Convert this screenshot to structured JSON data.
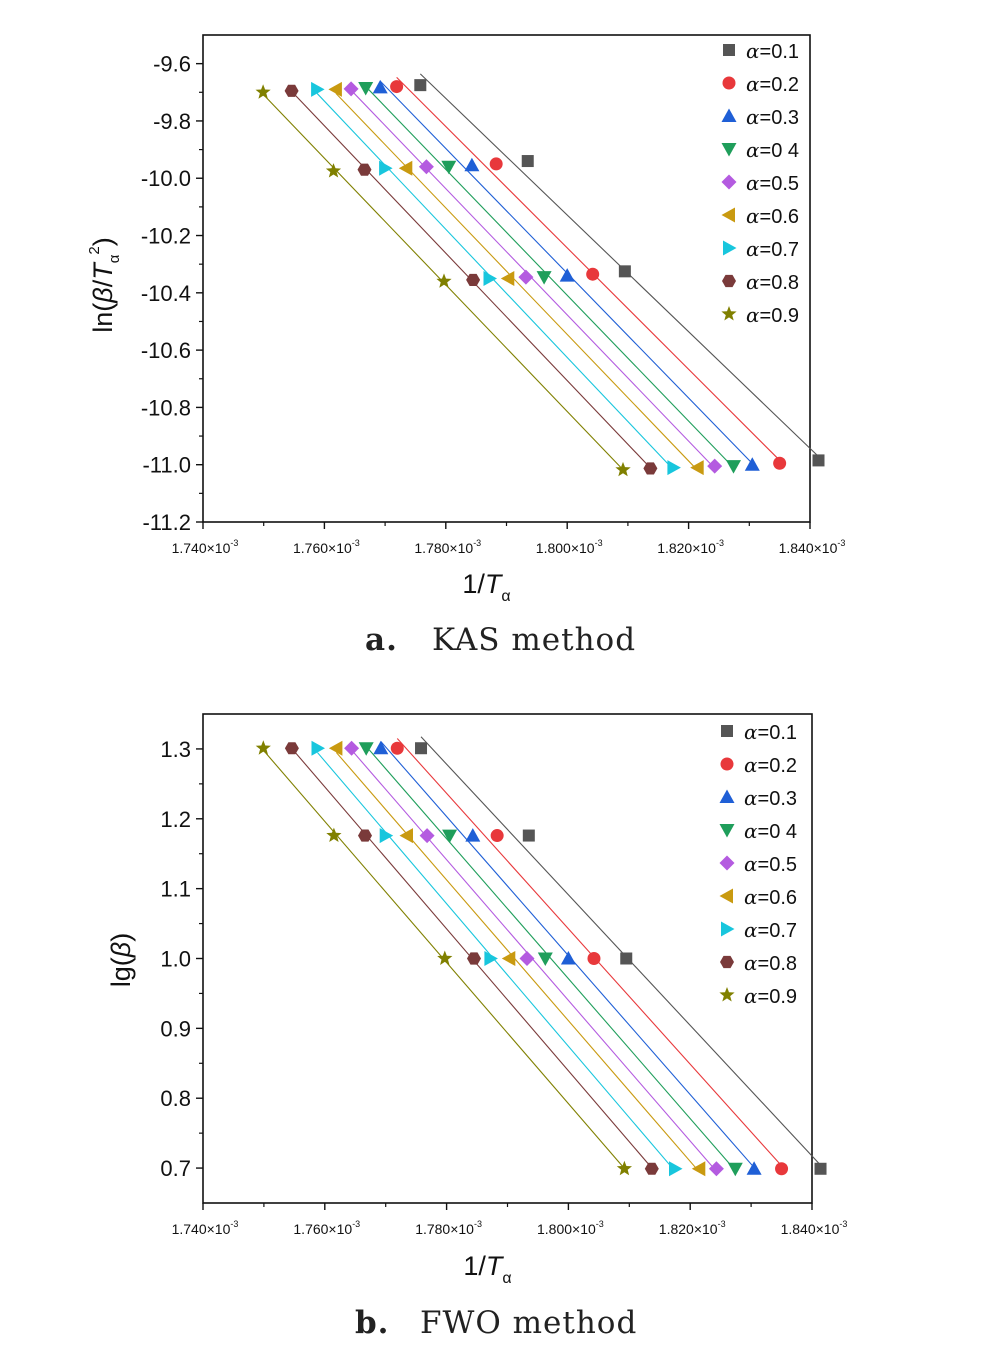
{
  "colors": [
    "#555555",
    "#e8383b",
    "#1f5fd6",
    "#1f9e5b",
    "#b45be0",
    "#c99a10",
    "#18c6dd",
    "#7a3a3a",
    "#808000"
  ],
  "markers": [
    "square",
    "circle",
    "triangle-up",
    "triangle-down",
    "diamond",
    "triangle-left",
    "triangle-right",
    "hexagon",
    "star"
  ],
  "chart_data": [
    {
      "type": "scatter",
      "caption_letter": "a.",
      "caption_text": "KAS method",
      "ylabel_parts": [
        "ln(",
        "β",
        "/",
        "T",
        "α",
        "2",
        ")"
      ],
      "xlabel_parts": [
        "1/",
        "T",
        "α"
      ],
      "xlim": [
        1.74,
        1.84
      ],
      "ylim": [
        -11.2,
        -9.5
      ],
      "x_ticks": [
        "1.740×10",
        "1.760×10",
        "1.780×10",
        "1.800×10",
        "1.820×10",
        "1.840×10"
      ],
      "x_tick_exp": "-3",
      "x_tick_values": [
        1.74,
        1.76,
        1.78,
        1.8,
        1.82,
        1.84
      ],
      "y_ticks": [
        "-9.6",
        "-9.8",
        "-10.0",
        "-10.2",
        "-10.4",
        "-10.6",
        "-10.8",
        "-11.0",
        "-11.2"
      ],
      "y_tick_values": [
        -9.6,
        -9.8,
        -10.0,
        -10.2,
        -10.4,
        -10.6,
        -10.8,
        -11.0,
        -11.2
      ],
      "legend_position": "top-right",
      "series": [
        {
          "name": "α=0.1",
          "x": [
            1.7758,
            1.7935,
            1.8095,
            1.8414
          ],
          "y": [
            -9.675,
            -9.94,
            -10.325,
            -10.985
          ]
        },
        {
          "name": "α=0.2",
          "x": [
            1.7719,
            1.7883,
            1.8042,
            1.835
          ],
          "y": [
            -9.68,
            -9.95,
            -10.335,
            -10.995
          ]
        },
        {
          "name": "α=0.3",
          "x": [
            1.7692,
            1.7843,
            1.8,
            1.8305
          ],
          "y": [
            -9.683,
            -9.955,
            -10.34,
            -11.0
          ]
        },
        {
          "name": "α=0 4",
          "x": [
            1.7668,
            1.7805,
            1.7962,
            1.8274
          ],
          "y": [
            -9.685,
            -9.96,
            -10.345,
            -11.005
          ]
        },
        {
          "name": "α=0.5",
          "x": [
            1.7644,
            1.7768,
            1.7932,
            1.8243
          ],
          "y": [
            -9.688,
            -9.96,
            -10.345,
            -11.005
          ]
        },
        {
          "name": "α=0.6",
          "x": [
            1.7619,
            1.7735,
            1.7903,
            1.8215
          ],
          "y": [
            -9.69,
            -9.965,
            -10.35,
            -11.01
          ]
        },
        {
          "name": "α=0.7",
          "x": [
            1.7588,
            1.77,
            1.7872,
            1.8175
          ],
          "y": [
            -9.69,
            -9.965,
            -10.35,
            -11.01
          ]
        },
        {
          "name": "α=0.8",
          "x": [
            1.7546,
            1.7666,
            1.7845,
            1.8137
          ],
          "y": [
            -9.695,
            -9.97,
            -10.355,
            -11.013
          ]
        },
        {
          "name": "α=0.9",
          "x": [
            1.7499,
            1.7615,
            1.7797,
            1.8092
          ],
          "y": [
            -9.7,
            -9.975,
            -10.36,
            -11.018
          ]
        }
      ]
    },
    {
      "type": "scatter",
      "caption_letter": "b.",
      "caption_text": "FWO method",
      "ylabel_parts": [
        "lg(",
        "β",
        ")"
      ],
      "xlabel_parts": [
        "1/",
        "T",
        "α"
      ],
      "xlim": [
        1.74,
        1.84
      ],
      "ylim": [
        0.65,
        1.35
      ],
      "x_ticks": [
        "1.740×10",
        "1.760×10",
        "1.780×10",
        "1.800×10",
        "1.820×10",
        "1.840×10"
      ],
      "x_tick_exp": "-3",
      "x_tick_values": [
        1.74,
        1.76,
        1.78,
        1.8,
        1.82,
        1.84
      ],
      "y_ticks": [
        "1.3",
        "1.2",
        "1.1",
        "1.0",
        "0.9",
        "0.8",
        "0.7"
      ],
      "y_tick_values": [
        1.3,
        1.2,
        1.1,
        1.0,
        0.9,
        0.8,
        0.7
      ],
      "legend_position": "top-right",
      "series": [
        {
          "name": "α=0.1",
          "x": [
            1.7758,
            1.7935,
            1.8095,
            1.8414
          ],
          "y": [
            1.301,
            1.176,
            1.0,
            0.699
          ]
        },
        {
          "name": "α=0.2",
          "x": [
            1.7719,
            1.7883,
            1.8042,
            1.835
          ],
          "y": [
            1.301,
            1.176,
            1.0,
            0.699
          ]
        },
        {
          "name": "α=0.3",
          "x": [
            1.7692,
            1.7843,
            1.8,
            1.8305
          ],
          "y": [
            1.301,
            1.176,
            1.0,
            0.699
          ]
        },
        {
          "name": "α=0 4",
          "x": [
            1.7668,
            1.7805,
            1.7962,
            1.8274
          ],
          "y": [
            1.301,
            1.176,
            1.0,
            0.699
          ]
        },
        {
          "name": "α=0.5",
          "x": [
            1.7644,
            1.7768,
            1.7932,
            1.8243
          ],
          "y": [
            1.301,
            1.176,
            1.0,
            0.699
          ]
        },
        {
          "name": "α=0.6",
          "x": [
            1.7619,
            1.7735,
            1.7903,
            1.8215
          ],
          "y": [
            1.301,
            1.176,
            1.0,
            0.699
          ]
        },
        {
          "name": "α=0.7",
          "x": [
            1.7588,
            1.77,
            1.7872,
            1.8175
          ],
          "y": [
            1.301,
            1.176,
            1.0,
            0.699
          ]
        },
        {
          "name": "α=0.8",
          "x": [
            1.7546,
            1.7666,
            1.7845,
            1.8137
          ],
          "y": [
            1.301,
            1.176,
            1.0,
            0.699
          ]
        },
        {
          "name": "α=0.9",
          "x": [
            1.7499,
            1.7615,
            1.7797,
            1.8092
          ],
          "y": [
            1.301,
            1.176,
            1.0,
            0.699
          ]
        }
      ]
    }
  ]
}
